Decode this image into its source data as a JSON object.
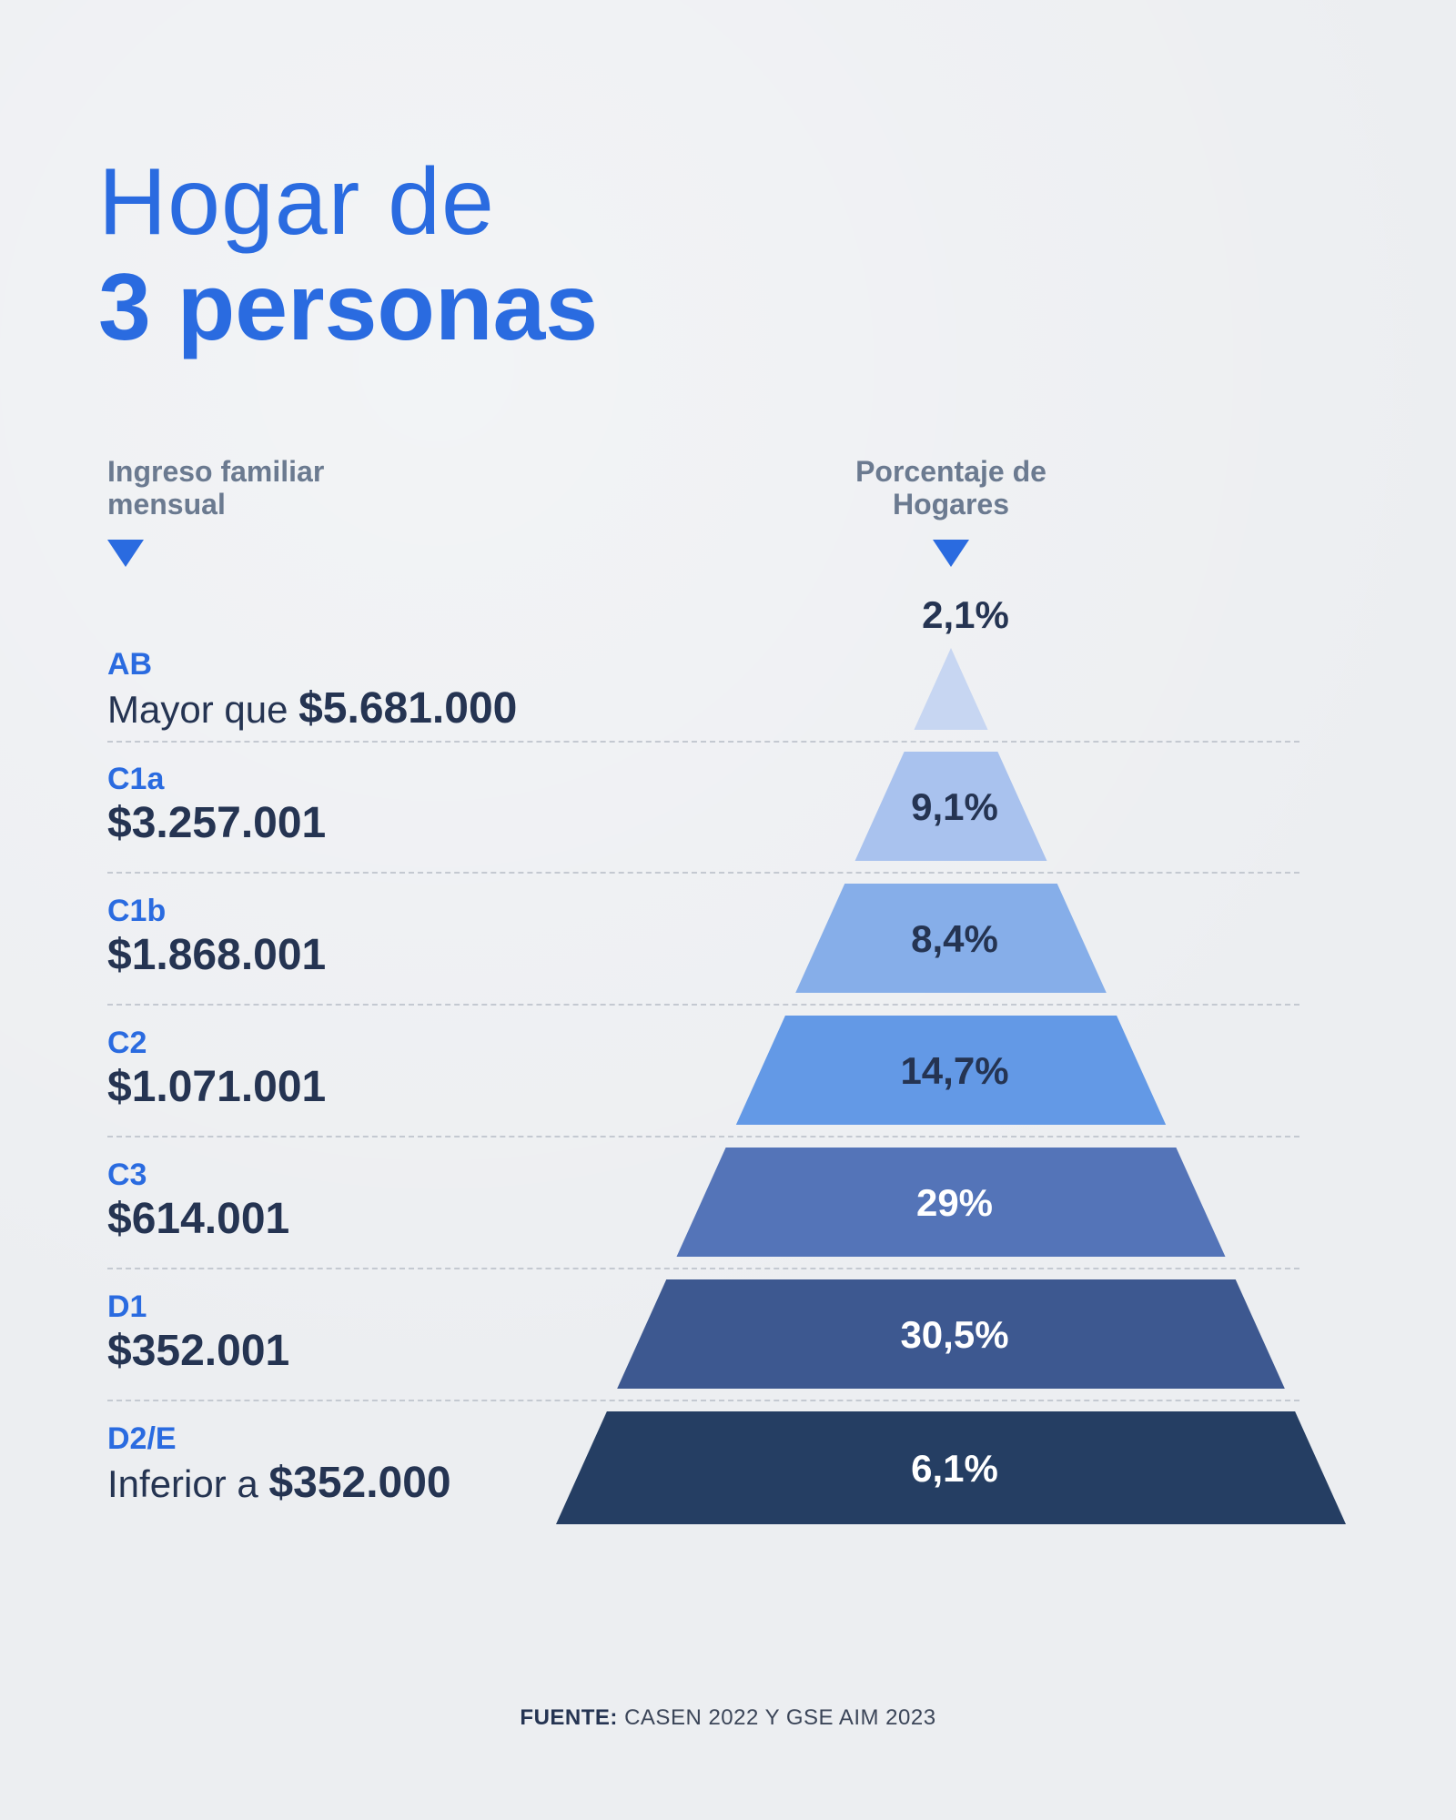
{
  "title": {
    "line1": "Hogar de",
    "line2": "3 personas"
  },
  "columns": {
    "left_header": "Ingreso familiar mensual",
    "right_header": "Porcentaje de Hogares"
  },
  "tiers": [
    {
      "name": "AB",
      "prefix": "Mayor que ",
      "amount": "$5.681.000",
      "percent_label": "2,1%"
    },
    {
      "name": "C1a",
      "prefix": "",
      "amount": "$3.257.001",
      "percent_label": "9,1%"
    },
    {
      "name": "C1b",
      "prefix": "",
      "amount": "$1.868.001",
      "percent_label": "8,4%"
    },
    {
      "name": "C2",
      "prefix": "",
      "amount": "$1.071.001",
      "percent_label": "14,7%"
    },
    {
      "name": "C3",
      "prefix": "",
      "amount": "$614.001",
      "percent_label": "29%"
    },
    {
      "name": "D1",
      "prefix": "",
      "amount": "$352.001",
      "percent_label": "30,5%"
    },
    {
      "name": "D2/E",
      "prefix": "Inferior a ",
      "amount": "$352.000",
      "percent_label": "6,1%"
    }
  ],
  "chart_data": {
    "type": "bar",
    "categories": [
      "AB",
      "C1a",
      "C1b",
      "C2",
      "C3",
      "D1",
      "D2/E"
    ],
    "series": [
      {
        "values": [
          2.1,
          9.1,
          8.4,
          14.7,
          29,
          30.5,
          6.1
        ]
      }
    ],
    "title": "Hogar de 3 personas"
  },
  "colors": {
    "accent": "#2a6be0",
    "text_dark": "#253452",
    "tiers": [
      "#c7d6f2",
      "#a9c2ee",
      "#86aee9",
      "#6399e6",
      "#5474b8",
      "#3d5890",
      "#253e63"
    ],
    "tier_text": [
      "#253452",
      "#253452",
      "#253452",
      "#253452",
      "#ffffff",
      "#ffffff",
      "#ffffff"
    ]
  },
  "source": {
    "label": "FUENTE:",
    "text": " CASEN 2022 Y GSE AIM 2023"
  }
}
